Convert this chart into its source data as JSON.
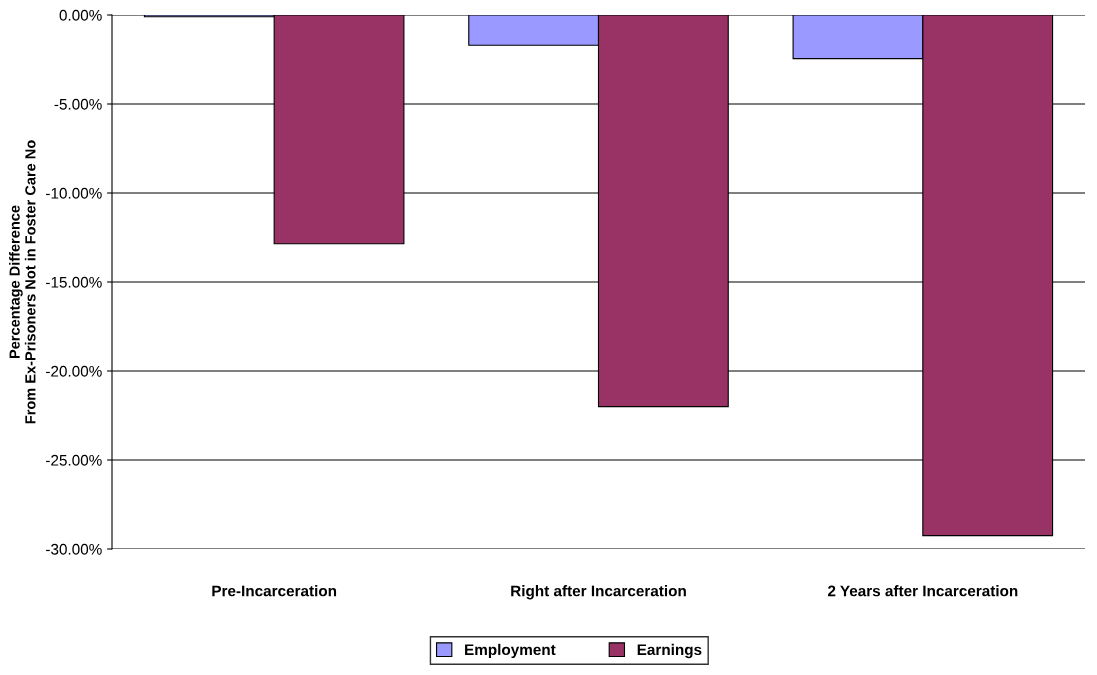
{
  "chart_data": {
    "type": "bar",
    "ylabel": "Percentage Difference\nFrom Ex-Prisoners Not in Foster Care No",
    "categories": [
      "Pre-Incarceration",
      "Right after Incarceration",
      "2 Years after Incarceration"
    ],
    "series": [
      {
        "name": "Employment",
        "color": "#9999ff",
        "values": [
          -0.1,
          -1.7,
          -2.45
        ]
      },
      {
        "name": "Earnings",
        "color": "#993366",
        "values": [
          -12.85,
          -22.0,
          -29.25
        ]
      }
    ],
    "ylim": [
      -30,
      0
    ],
    "yticks": [
      {
        "value": -30,
        "label": "-30.00%"
      },
      {
        "value": -25,
        "label": "-25.00%"
      },
      {
        "value": -20,
        "label": "-20.00%"
      },
      {
        "value": -15,
        "label": "-15.00%"
      },
      {
        "value": -10,
        "label": "-10.00%"
      },
      {
        "value": -5,
        "label": "-5.00%"
      },
      {
        "value": 0,
        "label": "0.00%"
      }
    ],
    "grid": "y",
    "legend": "bottom"
  }
}
